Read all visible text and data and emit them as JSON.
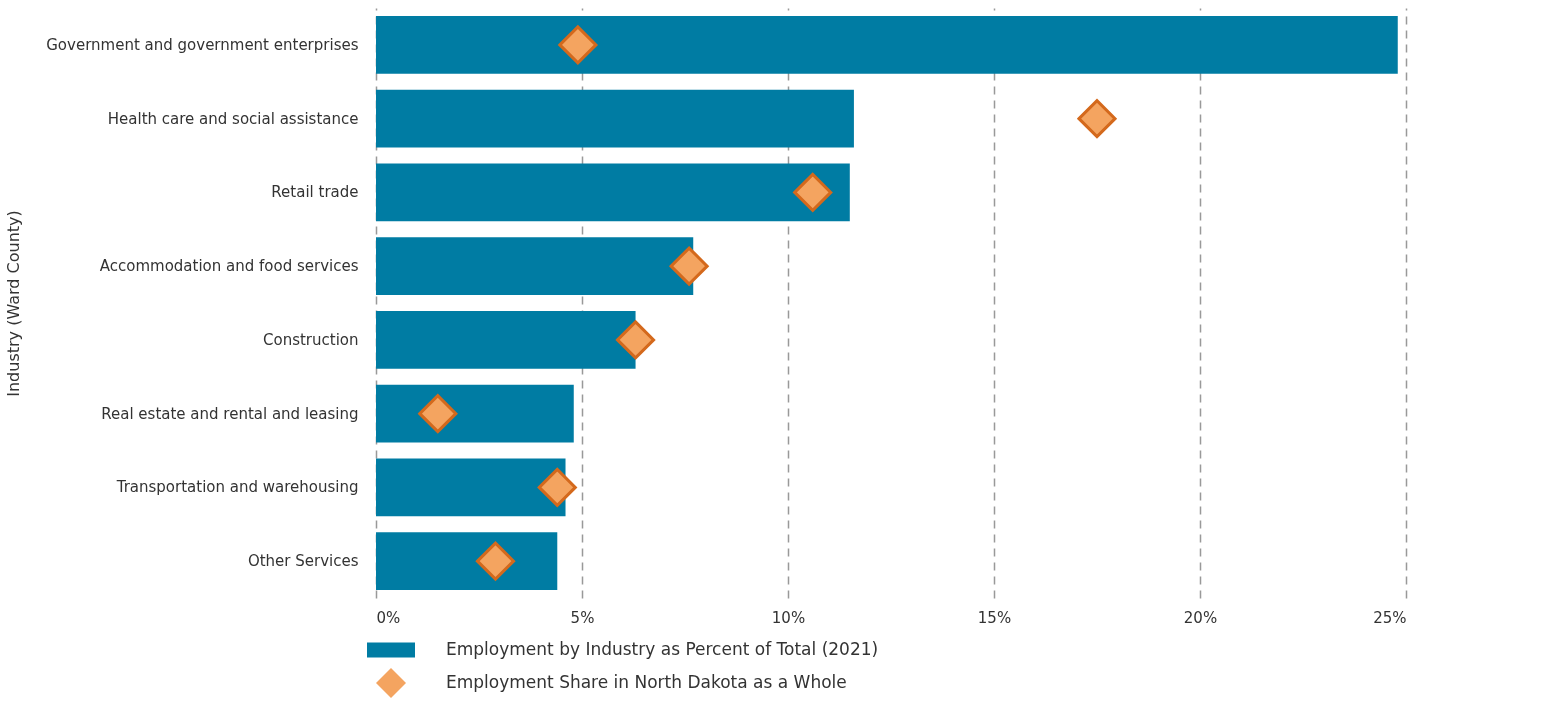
{
  "chart_data": {
    "type": "bar",
    "orientation": "horizontal",
    "ylabel": "Industry (Ward County)",
    "categories": [
      "Government and government enterprises",
      "Health care and social assistance",
      "Retail trade",
      "Accommodation and food services",
      "Construction",
      "Real estate and rental and leasing",
      "Transportation and warehousing",
      "Other Services"
    ],
    "series": [
      {
        "name": "Employment by Industry as Percent of Total (2021)",
        "color": "#007ca3",
        "values": [
          24.8,
          11.6,
          11.5,
          7.7,
          6.3,
          4.8,
          4.6,
          4.4
        ]
      },
      {
        "name": "Employment Share in North Dakota as a Whole",
        "type": "scatter",
        "marker": "diamond",
        "color": "#f4a460",
        "values": [
          4.9,
          17.5,
          10.6,
          7.6,
          6.3,
          1.5,
          4.4,
          2.9
        ]
      }
    ],
    "xlim": [
      0,
      25
    ],
    "xticks": [
      {
        "value": 0,
        "label": "0%"
      },
      {
        "value": 5,
        "label": "5%"
      },
      {
        "value": 10,
        "label": "10%"
      },
      {
        "value": 15,
        "label": "15%"
      },
      {
        "value": 20,
        "label": "20%"
      },
      {
        "value": 25,
        "label": "25%"
      }
    ],
    "grid": "x",
    "legend": "bottom"
  }
}
